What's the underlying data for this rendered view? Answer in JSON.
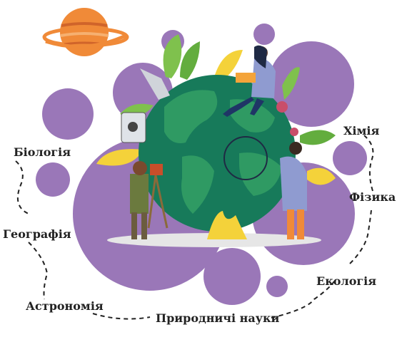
{
  "labels": {
    "biology": "Біологія",
    "geography": "Географія",
    "astronomy": "Астрономія",
    "natural_sciences": "Природничі науки",
    "ecology": "Екологія",
    "physics": "Фізика",
    "chemistry": "Хімія"
  },
  "colors": {
    "purple": "#9a77b8",
    "globe_ocean": "#177a5a",
    "globe_land": "#2f9a63",
    "planet_orange": "#f08a38",
    "leaf_green": "#7fc14d",
    "leaf_yellow": "#f4d23a",
    "label_text": "#222222"
  }
}
